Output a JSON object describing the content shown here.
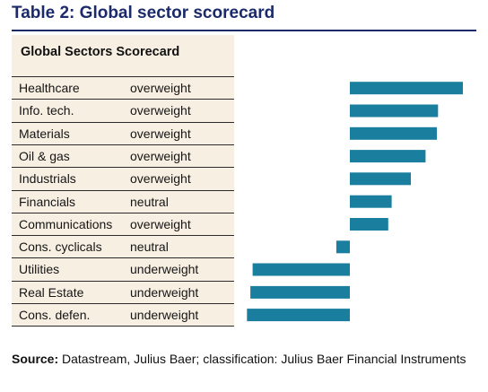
{
  "figure": {
    "title": "Table 2: Global sector scorecard",
    "table_heading": "Global Sectors Scorecard",
    "source_label": "Source:",
    "source_text": "Datastream, Julius Baer; classification: Julius Baer Financial Instruments"
  },
  "colors": {
    "title": "#1b2a6b",
    "bar": "#1a7f9e",
    "panel": "#f8efe3"
  },
  "chart_data": {
    "type": "bar",
    "orientation": "horizontal",
    "categories": [
      "Healthcare",
      "Info. tech.",
      "Materials",
      "Oil & gas",
      "Industrials",
      "Financials",
      "Communications",
      "Cons. cyclicals",
      "Utilities",
      "Real Estate",
      "Cons. defen."
    ],
    "ratings": [
      "overweight",
      "overweight",
      "overweight",
      "overweight",
      "overweight",
      "neutral",
      "overweight",
      "neutral",
      "underweight",
      "underweight",
      "underweight"
    ],
    "values": [
      1.0,
      0.78,
      0.77,
      0.67,
      0.54,
      0.37,
      0.34,
      -0.12,
      -0.86,
      -0.88,
      -0.91
    ],
    "xlim": [
      -1.0,
      1.0
    ],
    "axes_shown": false,
    "grid": false,
    "legend": "none"
  }
}
